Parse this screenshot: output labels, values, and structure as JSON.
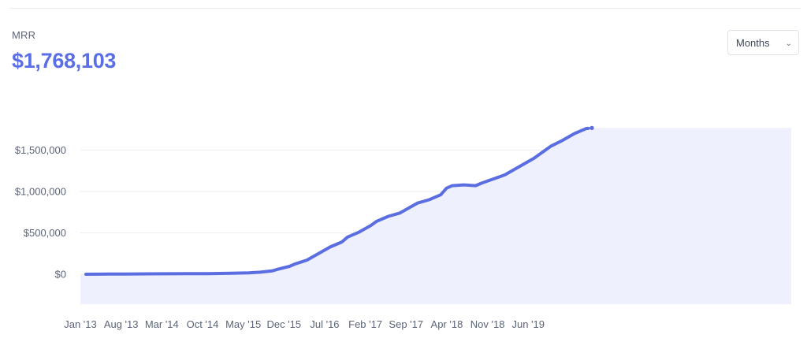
{
  "metric": {
    "label": "MRR",
    "value": "$1,768,103"
  },
  "period_selector": {
    "selected": "Months",
    "icon": "chevron-down-icon"
  },
  "colors": {
    "accent": "#5a6fe6",
    "line": "#5b6ee1",
    "area_fill": "#eef0fd",
    "grid": "#eceef3",
    "axis_text": "#5b6478"
  },
  "chart_data": {
    "type": "area",
    "title": "",
    "xlabel": "",
    "ylabel": "",
    "ylim": [
      -350000,
      2000000
    ],
    "grid": true,
    "x_ticks": [
      "Jan '13",
      "Aug '13",
      "Mar '14",
      "Oct '14",
      "May '15",
      "Dec '15",
      "Jul '16",
      "Feb '17",
      "Sep '17",
      "Apr '18",
      "Nov '18",
      "Jun '19"
    ],
    "y_ticks": [
      {
        "value": 0,
        "label": "$0"
      },
      {
        "value": 500000,
        "label": "$500,000"
      },
      {
        "value": 1000000,
        "label": "$1,000,000"
      },
      {
        "value": 1500000,
        "label": "$1,500,000"
      }
    ],
    "series": [
      {
        "values": [
          {
            "x": "Jan '13",
            "y": 0
          },
          {
            "x": "May '13",
            "y": 2000
          },
          {
            "x": "Aug '13",
            "y": 3000
          },
          {
            "x": "Dec '13",
            "y": 5000
          },
          {
            "x": "Mar '14",
            "y": 6000
          },
          {
            "x": "Jul '14",
            "y": 7000
          },
          {
            "x": "Oct '14",
            "y": 8000
          },
          {
            "x": "Feb '15",
            "y": 11000
          },
          {
            "x": "May '15",
            "y": 17000
          },
          {
            "x": "Jul '15",
            "y": 25000
          },
          {
            "x": "Sep '15",
            "y": 40000
          },
          {
            "x": "Oct '15",
            "y": 60000
          },
          {
            "x": "Dec '15",
            "y": 95000
          },
          {
            "x": "Jan '16",
            "y": 125000
          },
          {
            "x": "Mar '16",
            "y": 170000
          },
          {
            "x": "May '16",
            "y": 250000
          },
          {
            "x": "Jul '16",
            "y": 330000
          },
          {
            "x": "Sep '16",
            "y": 390000
          },
          {
            "x": "Oct '16",
            "y": 450000
          },
          {
            "x": "Dec '16",
            "y": 510000
          },
          {
            "x": "Feb '17",
            "y": 590000
          },
          {
            "x": "Mar '17",
            "y": 640000
          },
          {
            "x": "May '17",
            "y": 700000
          },
          {
            "x": "Jul '17",
            "y": 740000
          },
          {
            "x": "Sep '17",
            "y": 820000
          },
          {
            "x": "Oct '17",
            "y": 860000
          },
          {
            "x": "Dec '17",
            "y": 900000
          },
          {
            "x": "Feb '18",
            "y": 960000
          },
          {
            "x": "Mar '18",
            "y": 1040000
          },
          {
            "x": "Apr '18",
            "y": 1070000
          },
          {
            "x": "Jun '18",
            "y": 1080000
          },
          {
            "x": "Aug '18",
            "y": 1070000
          },
          {
            "x": "Sep '18",
            "y": 1100000
          },
          {
            "x": "Nov '18",
            "y": 1150000
          },
          {
            "x": "Jan '19",
            "y": 1200000
          },
          {
            "x": "Mar '19",
            "y": 1280000
          },
          {
            "x": "Jun '19",
            "y": 1400000
          },
          {
            "x": "Aug '19",
            "y": 1500000
          },
          {
            "x": "Sep '19",
            "y": 1550000
          },
          {
            "x": "Nov '19",
            "y": 1620000
          },
          {
            "x": "Jan '20",
            "y": 1700000
          },
          {
            "x": "Mar '20",
            "y": 1760000
          },
          {
            "x": "Apr '20",
            "y": 1768103
          }
        ]
      }
    ]
  }
}
